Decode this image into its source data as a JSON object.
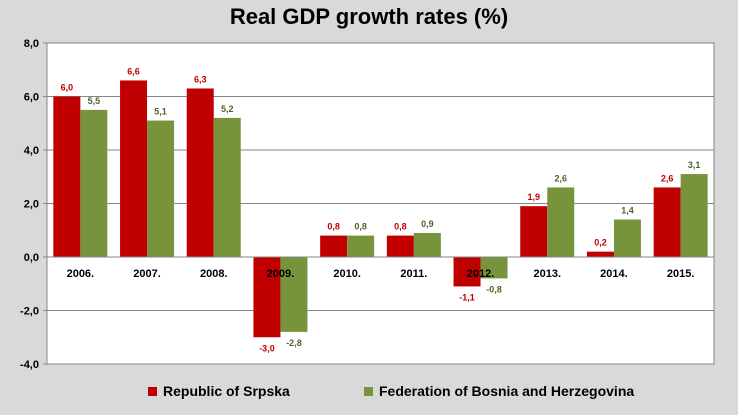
{
  "chart_data": {
    "type": "bar",
    "title": "Real GDP growth rates (%)",
    "xlabel": "",
    "ylabel": "",
    "categories": [
      "2006.",
      "2007.",
      "2008.",
      "2009.",
      "2010.",
      "2011.",
      "2012.",
      "2013.",
      "2014.",
      "2015."
    ],
    "series": [
      {
        "name": "Republic of Srpska",
        "color": "#c00000",
        "values": [
          6.0,
          6.6,
          6.3,
          -3.0,
          0.8,
          0.8,
          -1.1,
          1.9,
          0.2,
          2.6
        ],
        "labels": [
          "6,0",
          "6,6",
          "6,3",
          "-3,0",
          "0,8",
          "0,8",
          "-1,1",
          "1,9",
          "0,2",
          "2,6"
        ],
        "label_color": "#c00000"
      },
      {
        "name": "Federation of Bosnia and Herzegovina",
        "color": "#77933c",
        "values": [
          5.5,
          5.1,
          5.2,
          -2.8,
          0.8,
          0.9,
          -0.8,
          2.6,
          1.4,
          3.1
        ],
        "labels": [
          "5,5",
          "5,1",
          "5,2",
          "-2,8",
          "0,8",
          "0,9",
          "-0,8",
          "2,6",
          "1,4",
          "3,1"
        ],
        "label_color": "#4f6228"
      }
    ],
    "ylim": [
      -4.0,
      8.0
    ],
    "yticks": [
      8.0,
      6.0,
      4.0,
      2.0,
      0.0,
      -2.0,
      -4.0
    ],
    "ytick_labels": [
      "8,0",
      "6,0",
      "4,0",
      "2,0",
      "0,0",
      "-2,0",
      "-4,0"
    ],
    "grid": true,
    "legend": "bottom",
    "plot_background": "#ffffff",
    "page_background": "#d9d9d9"
  }
}
